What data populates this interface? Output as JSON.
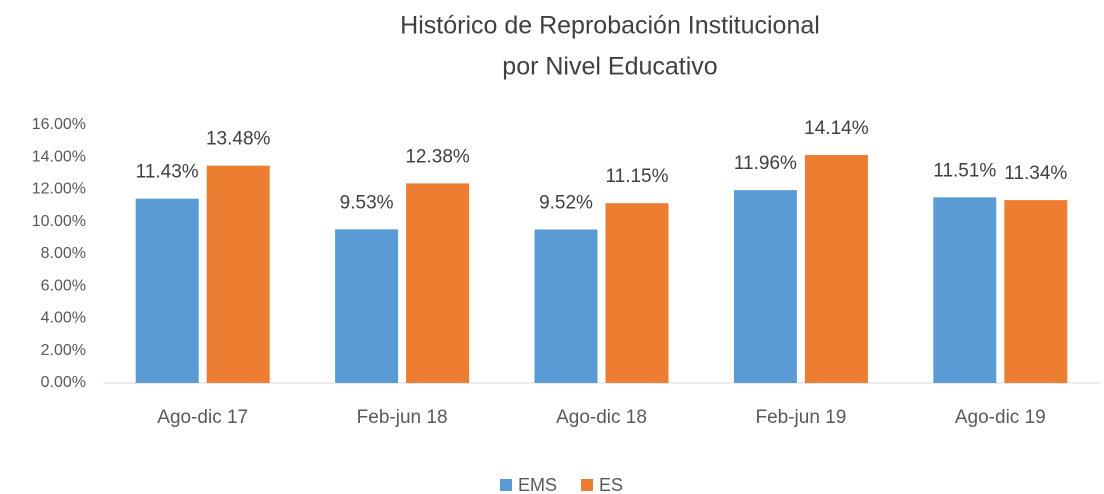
{
  "chart_data": {
    "type": "bar",
    "title": [
      "Histórico de Reprobación Institucional",
      "por Nivel Educativo"
    ],
    "categories": [
      "Ago-dic 17",
      "Feb-jun 18",
      "Ago-dic 18",
      "Feb-jun 19",
      "Ago-dic 19"
    ],
    "series": [
      {
        "name": "EMS",
        "color": "#5b9bd5",
        "values": [
          11.43,
          9.53,
          9.52,
          11.96,
          11.51
        ],
        "value_labels": [
          "11.43%",
          "9.53%",
          "9.52%",
          "11.96%",
          "11.51%"
        ]
      },
      {
        "name": "ES",
        "color": "#ed7d31",
        "values": [
          13.48,
          12.38,
          11.15,
          14.14,
          11.34
        ],
        "value_labels": [
          "13.48%",
          "12.38%",
          "11.15%",
          "14.14%",
          "11.34%"
        ]
      }
    ],
    "ylim": [
      0,
      16
    ],
    "yticks": [
      {
        "value": 0,
        "label": "0.00%"
      },
      {
        "value": 2,
        "label": "2.00%"
      },
      {
        "value": 4,
        "label": "4.00%"
      },
      {
        "value": 6,
        "label": "6.00%"
      },
      {
        "value": 8,
        "label": "8.00%"
      },
      {
        "value": 10,
        "label": "10.00%"
      },
      {
        "value": 12,
        "label": "12.00%"
      },
      {
        "value": 14,
        "label": "14.00%"
      },
      {
        "value": 16,
        "label": "16.00%"
      }
    ],
    "grid": false,
    "legend": "bottom"
  }
}
